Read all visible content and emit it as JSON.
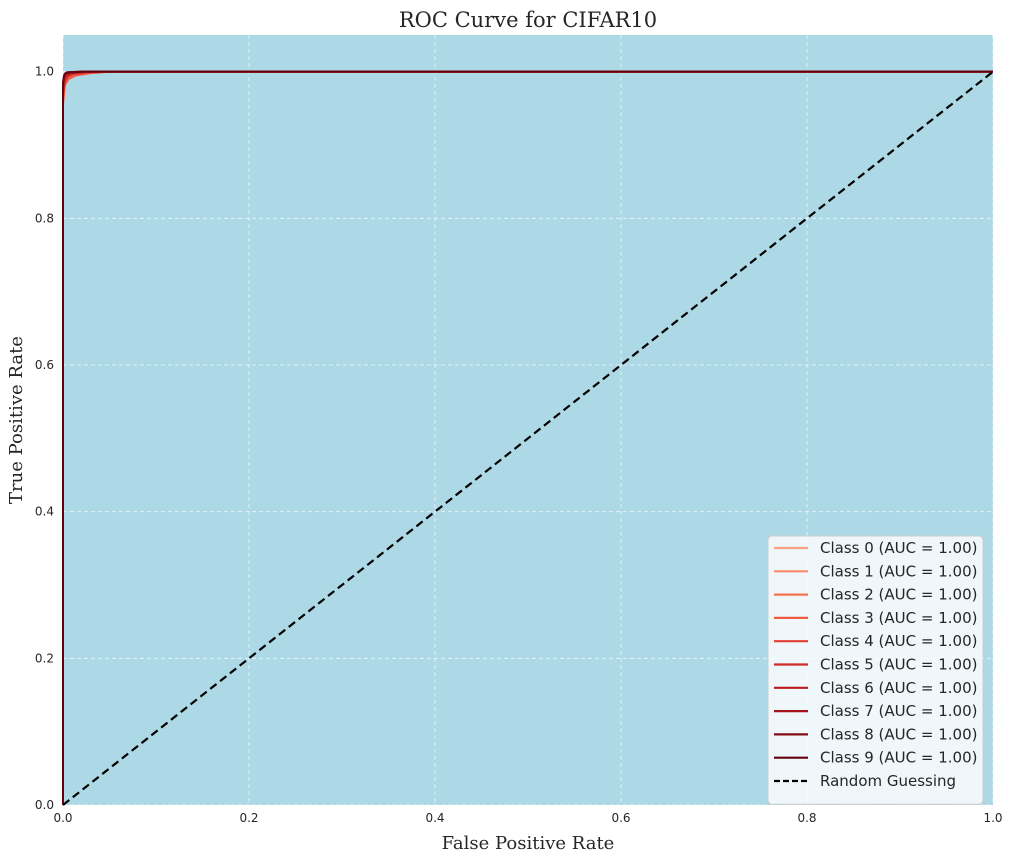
{
  "chart_data": {
    "type": "line",
    "title": "ROC Curve for CIFAR10",
    "xlabel": "False Positive Rate",
    "ylabel": "True Positive Rate",
    "xlim": [
      0.0,
      1.0
    ],
    "ylim": [
      0.0,
      1.05
    ],
    "xticks": [
      "0.0",
      "0.2",
      "0.4",
      "0.6",
      "0.8",
      "1.0"
    ],
    "yticks": [
      "0.0",
      "0.2",
      "0.4",
      "0.6",
      "0.8",
      "1.0"
    ],
    "grid": true,
    "legend_position": "lower-right",
    "plot_background": "#add8e6",
    "series": [
      {
        "name": "Class 0 (AUC = 1.00)",
        "color": "#fca082",
        "x": [
          0.0,
          0.0,
          0.002,
          0.006,
          0.012,
          0.03,
          0.055,
          1.0
        ],
        "y": [
          0.0,
          0.965,
          0.985,
          0.992,
          0.996,
          0.999,
          1.0,
          1.0
        ]
      },
      {
        "name": "Class 1 (AUC = 1.00)",
        "color": "#fb8b6a",
        "x": [
          0.0,
          0.0,
          0.002,
          0.005,
          0.01,
          0.025,
          0.045,
          1.0
        ],
        "y": [
          0.0,
          0.97,
          0.987,
          0.993,
          0.997,
          0.999,
          1.0,
          1.0
        ]
      },
      {
        "name": "Class 2 (AUC = 1.00)",
        "color": "#f7704f",
        "x": [
          0.0,
          0.0,
          0.002,
          0.006,
          0.012,
          0.028,
          0.05,
          1.0
        ],
        "y": [
          0.0,
          0.96,
          0.984,
          0.991,
          0.995,
          0.998,
          1.0,
          1.0
        ]
      },
      {
        "name": "Class 3 (AUC = 1.00)",
        "color": "#ef5a41",
        "x": [
          0.0,
          0.0,
          0.002,
          0.006,
          0.014,
          0.03,
          0.052,
          1.0
        ],
        "y": [
          0.0,
          0.955,
          0.982,
          0.99,
          0.995,
          0.998,
          1.0,
          1.0
        ]
      },
      {
        "name": "Class 4 (AUC = 1.00)",
        "color": "#e23f32",
        "x": [
          0.0,
          0.0,
          0.002,
          0.005,
          0.011,
          0.024,
          0.044,
          1.0
        ],
        "y": [
          0.0,
          0.965,
          0.986,
          0.993,
          0.997,
          0.999,
          1.0,
          1.0
        ]
      },
      {
        "name": "Class 5 (AUC = 1.00)",
        "color": "#d02c27",
        "x": [
          0.0,
          0.0,
          0.002,
          0.005,
          0.01,
          0.022,
          0.04,
          1.0
        ],
        "y": [
          0.0,
          0.97,
          0.988,
          0.994,
          0.997,
          0.999,
          1.0,
          1.0
        ]
      },
      {
        "name": "Class 6 (AUC = 1.00)",
        "color": "#bb1a1f",
        "x": [
          0.0,
          0.0,
          0.001,
          0.003,
          0.008,
          0.018,
          0.032,
          1.0
        ],
        "y": [
          0.0,
          0.975,
          0.99,
          0.995,
          0.998,
          0.999,
          1.0,
          1.0
        ]
      },
      {
        "name": "Class 7 (AUC = 1.00)",
        "color": "#a5131c",
        "x": [
          0.0,
          0.0,
          0.001,
          0.003,
          0.007,
          0.015,
          0.028,
          1.0
        ],
        "y": [
          0.0,
          0.978,
          0.991,
          0.996,
          0.998,
          0.999,
          1.0,
          1.0
        ]
      },
      {
        "name": "Class 8 (AUC = 1.00)",
        "color": "#860c14",
        "x": [
          0.0,
          0.0,
          0.001,
          0.002,
          0.005,
          0.012,
          0.022,
          1.0
        ],
        "y": [
          0.0,
          0.982,
          0.993,
          0.997,
          0.999,
          0.9995,
          1.0,
          1.0
        ]
      },
      {
        "name": "Class 9 (AUC = 1.00)",
        "color": "#67000d",
        "x": [
          0.0,
          0.0,
          0.001,
          0.002,
          0.004,
          0.01,
          0.02,
          1.0
        ],
        "y": [
          0.0,
          0.985,
          0.994,
          0.997,
          0.999,
          0.9995,
          1.0,
          1.0
        ]
      }
    ],
    "reference_line": {
      "name": "Random Guessing",
      "color": "#000000",
      "style": "dashed",
      "x": [
        0.0,
        1.0
      ],
      "y": [
        0.0,
        1.0
      ]
    }
  }
}
